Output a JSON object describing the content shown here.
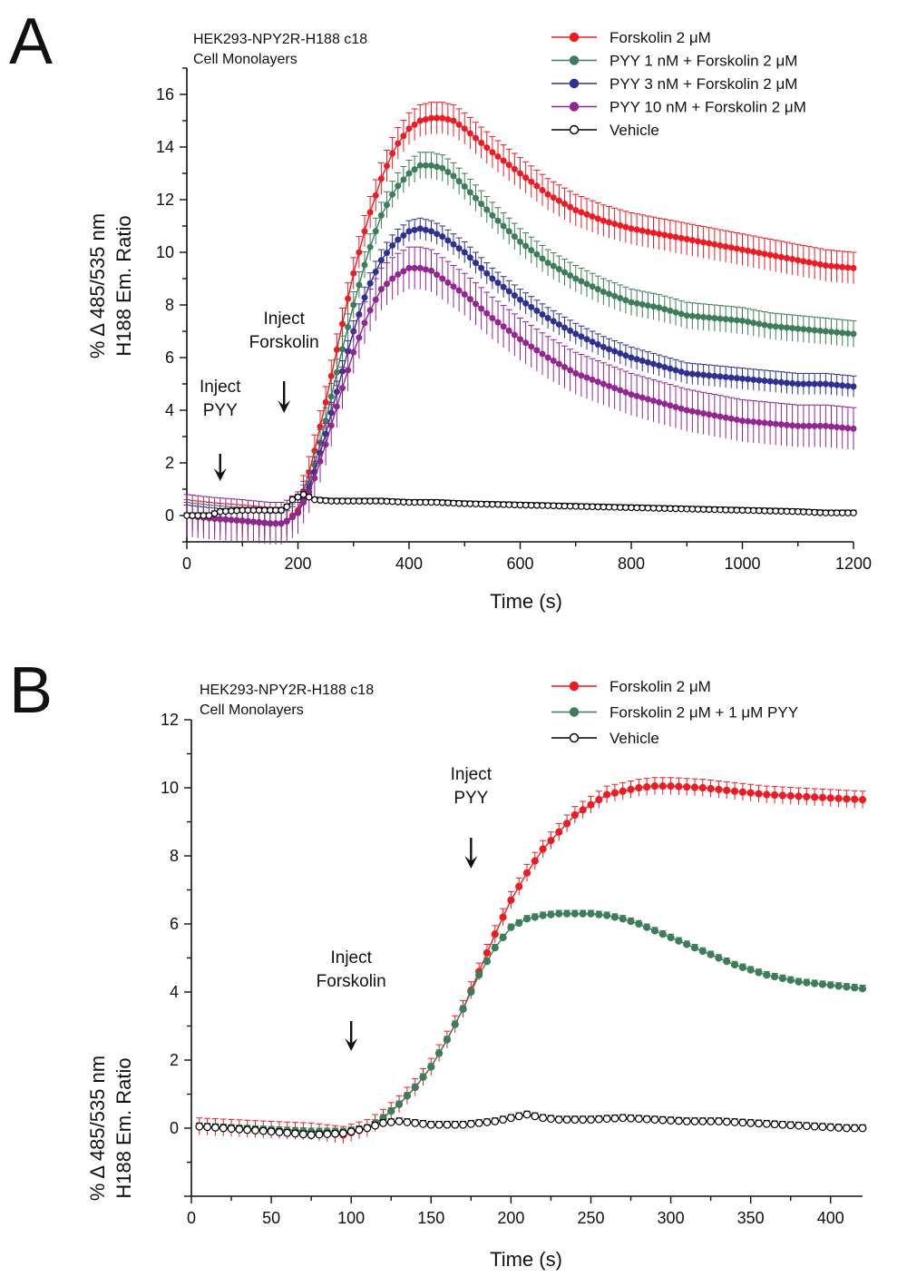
{
  "chart_data": [
    {
      "type": "line",
      "panel": "A",
      "subtitle_lines": [
        "HEK293-NPY2R-H188 c18",
        "Cell Monolayers"
      ],
      "xlabel": "Time (s)",
      "ylabel_lines": [
        "% Δ 485/535 nm",
        "H188 Em. Ratio"
      ],
      "xlim": [
        0,
        1200
      ],
      "ylim": [
        -1,
        17
      ],
      "xticks": [
        0,
        200,
        400,
        600,
        800,
        1000,
        1200
      ],
      "yticks": [
        0,
        2,
        4,
        6,
        8,
        10,
        12,
        14,
        16
      ],
      "marker_step": 10,
      "legend_position": "top-right",
      "annotations": [
        {
          "lines": [
            "Inject",
            "PYY"
          ],
          "x": 60
        },
        {
          "lines": [
            "Inject",
            "Forskolin"
          ],
          "x": 175
        }
      ],
      "series": [
        {
          "name": "Forskolin 2 μM",
          "color": "#ed1c24",
          "marker": "filled",
          "x": [
            0,
            40,
            100,
            150,
            175,
            200,
            225,
            250,
            275,
            300,
            325,
            350,
            375,
            400,
            420,
            440,
            460,
            480,
            500,
            550,
            600,
            650,
            700,
            750,
            800,
            850,
            900,
            950,
            1000,
            1050,
            1100,
            1150,
            1200
          ],
          "y": [
            0,
            -0.1,
            -0.2,
            -0.3,
            -0.3,
            0.2,
            2.0,
            4.3,
            6.8,
            9.2,
            11.2,
            12.8,
            14.0,
            14.7,
            15.0,
            15.1,
            15.1,
            15.0,
            14.7,
            13.8,
            13.0,
            12.2,
            11.6,
            11.2,
            10.9,
            10.7,
            10.5,
            10.3,
            10.1,
            9.9,
            9.7,
            9.5,
            9.4
          ],
          "err": 0.6
        },
        {
          "name": "PYY 1 nM + Forskolin 2 μM",
          "color": "#3e7d5a",
          "marker": "filled",
          "x": [
            0,
            40,
            100,
            150,
            175,
            200,
            225,
            250,
            275,
            300,
            325,
            350,
            375,
            400,
            420,
            440,
            460,
            480,
            500,
            550,
            600,
            650,
            700,
            750,
            800,
            850,
            900,
            950,
            1000,
            1050,
            1100,
            1150,
            1200
          ],
          "y": [
            0,
            -0.1,
            -0.2,
            -0.3,
            -0.3,
            0.1,
            1.5,
            3.6,
            5.9,
            8.0,
            9.9,
            11.4,
            12.4,
            13.0,
            13.3,
            13.3,
            13.2,
            12.9,
            12.5,
            11.4,
            10.4,
            9.6,
            9.0,
            8.5,
            8.1,
            7.9,
            7.6,
            7.5,
            7.4,
            7.2,
            7.1,
            7.0,
            6.9
          ],
          "err": 0.5
        },
        {
          "name": "PYY 3 nM + Forskolin 2 μM",
          "color": "#2e3192",
          "marker": "filled",
          "x": [
            0,
            40,
            100,
            150,
            175,
            200,
            225,
            250,
            275,
            300,
            325,
            350,
            375,
            400,
            420,
            440,
            460,
            480,
            500,
            550,
            600,
            650,
            700,
            750,
            800,
            850,
            900,
            950,
            1000,
            1050,
            1100,
            1150,
            1200
          ],
          "y": [
            0,
            -0.1,
            -0.2,
            -0.3,
            -0.3,
            0.1,
            1.3,
            3.1,
            5.1,
            7.0,
            8.6,
            9.7,
            10.4,
            10.8,
            10.9,
            10.8,
            10.6,
            10.3,
            10.0,
            9.0,
            8.2,
            7.5,
            6.9,
            6.4,
            6.0,
            5.7,
            5.4,
            5.3,
            5.2,
            5.1,
            5.0,
            5.0,
            4.9
          ],
          "err": 0.4
        },
        {
          "name": "PYY 10 nM + Forskolin 2 μM",
          "color": "#92278f",
          "marker": "filled",
          "x": [
            0,
            40,
            100,
            150,
            175,
            200,
            225,
            250,
            275,
            300,
            325,
            350,
            375,
            400,
            420,
            440,
            460,
            480,
            500,
            550,
            600,
            650,
            700,
            750,
            800,
            850,
            900,
            950,
            1000,
            1050,
            1100,
            1150,
            1200
          ],
          "y": [
            0,
            -0.1,
            -0.2,
            -0.3,
            -0.3,
            0.1,
            1.1,
            2.7,
            4.5,
            6.2,
            7.6,
            8.6,
            9.1,
            9.4,
            9.4,
            9.3,
            9.0,
            8.7,
            8.4,
            7.5,
            6.7,
            6.0,
            5.4,
            5.0,
            4.6,
            4.3,
            4.0,
            3.8,
            3.6,
            3.5,
            3.4,
            3.4,
            3.3
          ],
          "err": 0.8
        },
        {
          "name": "Vehicle",
          "color": "#000000",
          "marker": "open",
          "x": [
            0,
            40,
            60,
            100,
            150,
            175,
            190,
            210,
            230,
            260,
            300,
            350,
            400,
            450,
            500,
            600,
            700,
            800,
            900,
            1000,
            1100,
            1150,
            1200
          ],
          "y": [
            0,
            0,
            0.15,
            0.2,
            0.2,
            0.2,
            0.6,
            0.8,
            0.6,
            0.55,
            0.55,
            0.55,
            0.5,
            0.5,
            0.45,
            0.4,
            0.35,
            0.3,
            0.25,
            0.2,
            0.15,
            0.1,
            0.1
          ],
          "err": 0.1
        }
      ]
    },
    {
      "type": "line",
      "panel": "B",
      "subtitle_lines": [
        "HEK293-NPY2R-H188 c18",
        "Cell Monolayers"
      ],
      "xlabel": "Time (s)",
      "ylabel_lines": [
        "% Δ 485/535 nm",
        "H188 Em. Ratio"
      ],
      "xlim": [
        0,
        420
      ],
      "ylim": [
        -2,
        12
      ],
      "xticks": [
        0,
        50,
        100,
        150,
        200,
        250,
        300,
        350,
        400
      ],
      "yticks": [
        0,
        2,
        4,
        6,
        8,
        10,
        12
      ],
      "marker_step": 5,
      "legend_position": "top-right",
      "annotations": [
        {
          "lines": [
            "Inject",
            "Forskolin"
          ],
          "x": 100
        },
        {
          "lines": [
            "Inject",
            "PYY"
          ],
          "x": 175
        }
      ],
      "series": [
        {
          "name": "Forskolin 2 μM",
          "color": "#ed1c24",
          "marker": "filled",
          "x": [
            5,
            50,
            75,
            95,
            110,
            120,
            130,
            140,
            150,
            160,
            170,
            180,
            190,
            200,
            210,
            220,
            230,
            240,
            250,
            260,
            270,
            280,
            290,
            300,
            320,
            340,
            360,
            380,
            400,
            420
          ],
          "y": [
            0.05,
            -0.05,
            -0.1,
            -0.2,
            0.0,
            0.3,
            0.7,
            1.2,
            1.8,
            2.6,
            3.5,
            4.6,
            5.7,
            6.7,
            7.5,
            8.2,
            8.7,
            9.2,
            9.5,
            9.8,
            9.9,
            10.0,
            10.05,
            10.05,
            10.0,
            9.9,
            9.8,
            9.75,
            9.7,
            9.65
          ],
          "err": 0.25
        },
        {
          "name": "Forskolin 2 μM + 1 μM PYY",
          "color": "#3e7d5a",
          "marker": "filled",
          "x": [
            5,
            50,
            75,
            95,
            110,
            120,
            130,
            140,
            150,
            160,
            170,
            180,
            190,
            200,
            210,
            220,
            230,
            240,
            250,
            260,
            270,
            280,
            290,
            300,
            320,
            340,
            360,
            380,
            400,
            420
          ],
          "y": [
            0.05,
            -0.05,
            -0.1,
            -0.1,
            0.0,
            0.3,
            0.7,
            1.2,
            1.8,
            2.6,
            3.5,
            4.5,
            5.3,
            5.9,
            6.15,
            6.25,
            6.3,
            6.3,
            6.3,
            6.25,
            6.15,
            6.0,
            5.8,
            5.6,
            5.2,
            4.8,
            4.5,
            4.3,
            4.2,
            4.1
          ],
          "err": 0.1
        },
        {
          "name": "Vehicle",
          "color": "#000000",
          "marker": "open",
          "x": [
            5,
            50,
            75,
            95,
            110,
            120,
            130,
            140,
            150,
            160,
            170,
            180,
            190,
            200,
            210,
            220,
            230,
            250,
            270,
            290,
            310,
            330,
            350,
            370,
            390,
            410,
            420
          ],
          "y": [
            0.05,
            -0.1,
            -0.2,
            -0.15,
            0.0,
            0.15,
            0.2,
            0.15,
            0.1,
            0.1,
            0.1,
            0.15,
            0.2,
            0.3,
            0.4,
            0.3,
            0.25,
            0.25,
            0.3,
            0.25,
            0.2,
            0.2,
            0.15,
            0.1,
            0.05,
            0.0,
            0.0
          ],
          "err": 0.1
        }
      ]
    }
  ]
}
